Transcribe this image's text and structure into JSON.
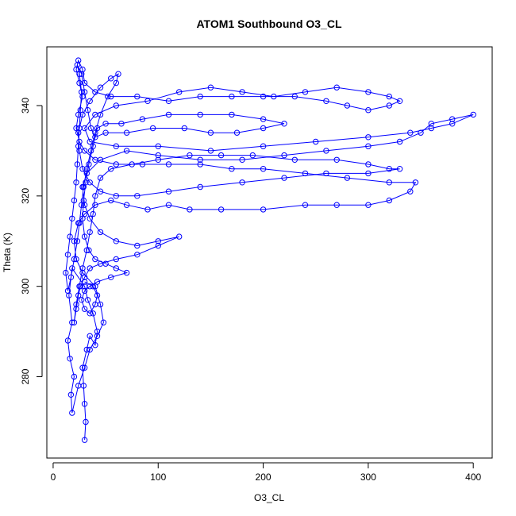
{
  "chart_data": {
    "type": "scatter",
    "title": "ATOM1 Southbound O3_CL",
    "xlabel": "O3_CL",
    "ylabel": "Theta (K)",
    "xlim": [
      -6,
      418
    ],
    "ylim": [
      262,
      353
    ],
    "x_ticks": [
      0,
      100,
      200,
      300,
      400
    ],
    "y_ticks": [
      280,
      300,
      320,
      340
    ],
    "grid": false,
    "marker": "open-circle",
    "connected": true,
    "color": "#0000ff",
    "series": [
      {
        "values": [
          [
            30,
            266
          ],
          [
            31,
            270
          ],
          [
            30,
            274
          ],
          [
            29,
            278
          ],
          [
            28,
            282
          ],
          [
            32,
            286
          ],
          [
            35,
            289
          ],
          [
            40,
            287
          ],
          [
            42,
            290
          ],
          [
            38,
            294
          ],
          [
            33,
            297
          ],
          [
            30,
            300
          ],
          [
            18,
            304
          ],
          [
            15,
            298
          ],
          [
            18,
            292
          ],
          [
            14,
            288
          ],
          [
            16,
            284
          ],
          [
            20,
            280
          ],
          [
            17,
            276
          ],
          [
            18,
            272
          ],
          [
            24,
            278
          ],
          [
            30,
            282
          ],
          [
            35,
            286
          ],
          [
            42,
            289
          ],
          [
            48,
            292
          ],
          [
            45,
            296
          ],
          [
            40,
            300
          ],
          [
            28,
            303
          ],
          [
            22,
            306
          ],
          [
            20,
            310
          ],
          [
            24,
            314
          ],
          [
            30,
            316
          ],
          [
            40,
            318
          ],
          [
            55,
            319
          ],
          [
            70,
            318
          ],
          [
            90,
            317
          ],
          [
            110,
            318
          ],
          [
            130,
            317
          ],
          [
            160,
            317
          ],
          [
            200,
            317
          ],
          [
            240,
            318
          ],
          [
            270,
            318
          ],
          [
            300,
            318
          ],
          [
            320,
            319
          ],
          [
            340,
            321
          ],
          [
            345,
            323
          ],
          [
            320,
            323
          ],
          [
            280,
            324
          ],
          [
            240,
            325
          ],
          [
            200,
            326
          ],
          [
            170,
            326
          ],
          [
            140,
            327
          ],
          [
            110,
            327
          ],
          [
            85,
            327
          ],
          [
            60,
            327
          ],
          [
            40,
            328
          ],
          [
            30,
            330
          ],
          [
            25,
            332
          ],
          [
            22,
            335
          ],
          [
            24,
            338
          ],
          [
            28,
            342
          ],
          [
            25,
            345
          ],
          [
            22,
            348
          ],
          [
            24,
            350
          ],
          [
            28,
            348
          ],
          [
            30,
            345
          ],
          [
            40,
            343
          ],
          [
            55,
            342
          ],
          [
            80,
            342
          ],
          [
            110,
            341
          ],
          [
            140,
            342
          ],
          [
            170,
            342
          ],
          [
            200,
            342
          ],
          [
            230,
            342
          ],
          [
            260,
            341
          ],
          [
            280,
            340
          ],
          [
            300,
            339
          ],
          [
            320,
            340
          ],
          [
            330,
            341
          ],
          [
            320,
            342
          ],
          [
            300,
            343
          ],
          [
            270,
            344
          ],
          [
            240,
            343
          ],
          [
            210,
            342
          ],
          [
            180,
            343
          ],
          [
            150,
            344
          ],
          [
            120,
            343
          ],
          [
            90,
            341
          ],
          [
            60,
            340
          ],
          [
            40,
            338
          ],
          [
            30,
            335
          ],
          [
            35,
            332
          ],
          [
            60,
            331
          ],
          [
            100,
            331
          ],
          [
            150,
            330
          ],
          [
            200,
            331
          ],
          [
            250,
            332
          ],
          [
            300,
            333
          ],
          [
            340,
            334
          ],
          [
            360,
            335
          ],
          [
            380,
            336
          ],
          [
            400,
            338
          ],
          [
            380,
            337
          ],
          [
            360,
            336
          ],
          [
            350,
            334
          ],
          [
            330,
            332
          ],
          [
            300,
            331
          ],
          [
            260,
            330
          ],
          [
            220,
            329
          ],
          [
            180,
            328
          ],
          [
            140,
            328
          ],
          [
            100,
            329
          ],
          [
            70,
            330
          ],
          [
            45,
            328
          ],
          [
            32,
            325
          ],
          [
            28,
            322
          ],
          [
            30,
            318
          ],
          [
            35,
            315
          ],
          [
            45,
            312
          ],
          [
            60,
            310
          ],
          [
            80,
            309
          ],
          [
            100,
            310
          ],
          [
            120,
            311
          ],
          [
            100,
            309
          ],
          [
            80,
            307
          ],
          [
            60,
            306
          ],
          [
            45,
            305
          ],
          [
            35,
            304
          ],
          [
            30,
            302
          ],
          [
            26,
            300
          ],
          [
            24,
            298
          ],
          [
            22,
            295
          ],
          [
            20,
            292
          ],
          [
            22,
            296
          ],
          [
            25,
            300
          ],
          [
            28,
            304
          ],
          [
            32,
            308
          ],
          [
            35,
            312
          ],
          [
            38,
            316
          ],
          [
            40,
            320
          ],
          [
            45,
            324
          ],
          [
            55,
            326
          ],
          [
            75,
            327
          ],
          [
            100,
            328
          ],
          [
            130,
            329
          ],
          [
            160,
            329
          ],
          [
            190,
            329
          ],
          [
            230,
            328
          ],
          [
            270,
            328
          ],
          [
            300,
            327
          ],
          [
            320,
            326
          ],
          [
            330,
            326
          ],
          [
            300,
            325
          ],
          [
            260,
            325
          ],
          [
            220,
            324
          ],
          [
            180,
            323
          ],
          [
            140,
            322
          ],
          [
            110,
            321
          ],
          [
            80,
            320
          ],
          [
            60,
            320
          ],
          [
            45,
            321
          ],
          [
            35,
            323
          ],
          [
            28,
            326
          ],
          [
            25,
            330
          ],
          [
            24,
            334
          ],
          [
            28,
            338
          ],
          [
            35,
            341
          ],
          [
            45,
            344
          ],
          [
            55,
            346
          ],
          [
            62,
            347
          ],
          [
            60,
            345
          ],
          [
            52,
            342
          ],
          [
            45,
            338
          ],
          [
            40,
            334
          ],
          [
            36,
            330
          ],
          [
            32,
            326
          ],
          [
            29,
            322
          ],
          [
            27,
            318
          ],
          [
            25,
            314
          ],
          [
            23,
            310
          ],
          [
            20,
            306
          ],
          [
            17,
            302
          ],
          [
            14,
            299
          ],
          [
            12,
            303
          ],
          [
            14,
            307
          ],
          [
            16,
            311
          ],
          [
            18,
            315
          ],
          [
            20,
            319
          ],
          [
            22,
            323
          ],
          [
            23,
            327
          ],
          [
            24,
            331
          ],
          [
            25,
            335
          ],
          [
            26,
            339
          ],
          [
            27,
            343
          ],
          [
            25,
            347
          ],
          [
            23,
            349
          ],
          [
            27,
            347
          ],
          [
            30,
            343
          ],
          [
            33,
            339
          ],
          [
            36,
            335
          ],
          [
            40,
            333
          ],
          [
            50,
            334
          ],
          [
            70,
            334
          ],
          [
            95,
            335
          ],
          [
            125,
            335
          ],
          [
            150,
            334
          ],
          [
            175,
            334
          ],
          [
            200,
            335
          ],
          [
            220,
            336
          ],
          [
            200,
            337
          ],
          [
            170,
            338
          ],
          [
            140,
            338
          ],
          [
            110,
            338
          ],
          [
            85,
            337
          ],
          [
            65,
            336
          ],
          [
            50,
            336
          ],
          [
            42,
            335
          ],
          [
            38,
            331
          ],
          [
            34,
            327
          ],
          [
            31,
            323
          ],
          [
            29,
            319
          ],
          [
            28,
            315
          ],
          [
            30,
            311
          ],
          [
            34,
            308
          ],
          [
            40,
            306
          ],
          [
            50,
            305
          ],
          [
            60,
            304
          ],
          [
            70,
            303
          ],
          [
            55,
            302
          ],
          [
            42,
            301
          ],
          [
            35,
            300
          ],
          [
            30,
            299
          ],
          [
            27,
            297
          ],
          [
            30,
            295
          ],
          [
            35,
            294
          ],
          [
            40,
            296
          ],
          [
            42,
            298
          ],
          [
            38,
            300
          ],
          [
            30,
            301
          ]
        ]
      }
    ]
  }
}
